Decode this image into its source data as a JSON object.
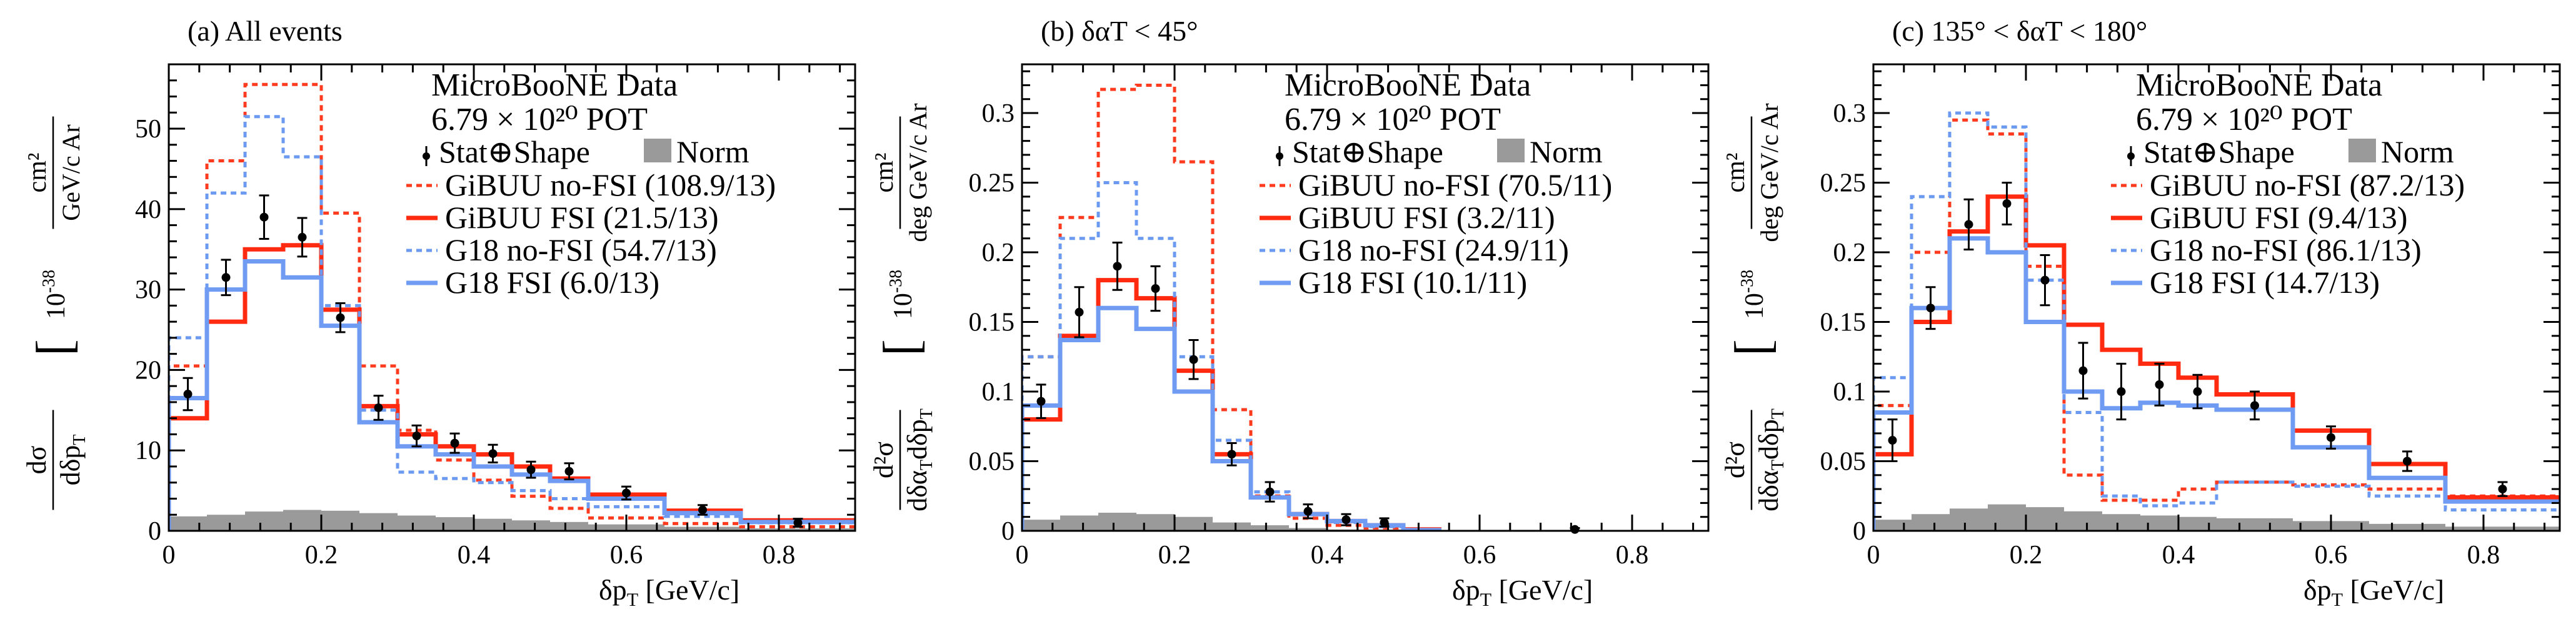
{
  "colors": {
    "gibuu_nofsi": "#ff3b1f",
    "gibuu_fsi": "#ff2a10",
    "g18_nofsi": "#6b9af0",
    "g18_fsi": "#6f9bf2",
    "norm_band": "#9a9a9a",
    "data": "#000000"
  },
  "chart_data": [
    {
      "type": "histogram",
      "panel_label": "(a) All events",
      "legend_header": [
        "MicroBooNE Data",
        "6.79 × 10²⁰ POT"
      ],
      "xlabel": "δpT [GeV/c]",
      "ylabel": "dσ/dδpT [10⁻³⁸ cm²/(GeV/c Ar)]",
      "ylabel_parts": {
        "num": "dσ",
        "den": "dδp",
        "den_sub": "T",
        "scale": "10",
        "scale_exp": "-38",
        "unit_num": "cm²",
        "unit_den": "GeV/c Ar"
      },
      "xlim": [
        0,
        0.9
      ],
      "ylim": [
        0,
        58
      ],
      "xticks": [
        0,
        0.2,
        0.4,
        0.6,
        0.8
      ],
      "xtick_labels": [
        "0",
        "0.2",
        "0.4",
        "0.6",
        "0.8"
      ],
      "yticks": [
        0,
        10,
        20,
        30,
        40,
        50
      ],
      "ytick_labels": [
        "0",
        "10",
        "20",
        "30",
        "40",
        "50"
      ],
      "bin_edges": [
        0,
        0.05,
        0.1,
        0.15,
        0.2,
        0.25,
        0.3,
        0.35,
        0.4,
        0.45,
        0.5,
        0.55,
        0.65,
        0.75,
        0.9
      ],
      "data": {
        "x": [
          0.025,
          0.075,
          0.125,
          0.175,
          0.225,
          0.275,
          0.325,
          0.375,
          0.425,
          0.475,
          0.525,
          0.6,
          0.7,
          0.825
        ],
        "y": [
          17,
          31.5,
          39,
          36.5,
          26.5,
          15.3,
          11.8,
          10.9,
          9.6,
          7.6,
          7.4,
          4.7,
          2.6,
          1.0
        ],
        "err": [
          2,
          2.2,
          2.7,
          2.4,
          1.8,
          1.5,
          1.3,
          1.2,
          1.1,
          1.0,
          1.0,
          0.8,
          0.6,
          0.5
        ]
      },
      "norm_band": [
        1.8,
        2.0,
        2.4,
        2.6,
        2.5,
        2.2,
        1.9,
        1.7,
        1.5,
        1.3,
        1.1,
        0.8,
        0.5,
        0.3
      ],
      "series": [
        {
          "name": "GiBUU no-FSI",
          "chi2": "(108.9/13)",
          "style": "dotted",
          "color_key": "gibuu_nofsi",
          "values": [
            20.5,
            46,
            55.5,
            55.5,
            39.5,
            20.5,
            12.5,
            8.8,
            6.3,
            4.3,
            2.8,
            1.6,
            0.9,
            0.5
          ]
        },
        {
          "name": "GiBUU FSI",
          "chi2": "(21.5/13)",
          "style": "solid",
          "color_key": "gibuu_fsi",
          "values": [
            14,
            26,
            35,
            35.5,
            27.5,
            15.5,
            12,
            10.5,
            9.5,
            8,
            6.5,
            4.5,
            2.5,
            1.3
          ]
        },
        {
          "name": "G18 no-FSI",
          "chi2": "(54.7/13)",
          "style": "dotted",
          "color_key": "g18_nofsi",
          "values": [
            24,
            42,
            51.5,
            46.5,
            28,
            15,
            7.3,
            6.5,
            6,
            5,
            4,
            3,
            1.8,
            1.0
          ]
        },
        {
          "name": "G18 FSI",
          "chi2": "(6.0/13)",
          "style": "solid",
          "color_key": "g18_fsi",
          "values": [
            16.5,
            30,
            33.5,
            31.5,
            25.5,
            13.5,
            10.5,
            9.5,
            8,
            7,
            6.2,
            4,
            2.2,
            1.1
          ]
        }
      ],
      "legend_stat": "Stat⊕Shape",
      "legend_norm": "Norm"
    },
    {
      "type": "histogram",
      "panel_label": "(b) δαT < 45°",
      "legend_header": [
        "MicroBooNE Data",
        "6.79 × 10²⁰ POT"
      ],
      "xlabel": "δpT [GeV/c]",
      "ylabel": "d²σ/dδαT dδpT [10⁻³⁸ cm²/(deg GeV/c Ar)]",
      "ylabel_parts": {
        "num": "d²σ",
        "den": "dδα",
        "den_sub": "T",
        "den2": "dδp",
        "den2_sub": "T",
        "scale": "10",
        "scale_exp": "-38",
        "unit_num": "cm²",
        "unit_den": "deg GeV/c Ar"
      },
      "xlim": [
        0,
        0.9
      ],
      "ylim": [
        0,
        0.335
      ],
      "xticks": [
        0,
        0.2,
        0.4,
        0.6,
        0.8
      ],
      "xtick_labels": [
        "0",
        "0.2",
        "0.4",
        "0.6",
        "0.8"
      ],
      "yticks": [
        0,
        0.05,
        0.1,
        0.15,
        0.2,
        0.25,
        0.3
      ],
      "ytick_labels": [
        "0",
        "0.05",
        "0.1",
        "0.15",
        "0.2",
        "0.25",
        "0.3"
      ],
      "bin_edges": [
        0,
        0.05,
        0.1,
        0.15,
        0.2,
        0.25,
        0.3,
        0.35,
        0.4,
        0.45,
        0.5,
        0.55,
        0.9
      ],
      "data": {
        "x": [
          0.025,
          0.075,
          0.125,
          0.175,
          0.225,
          0.275,
          0.325,
          0.375,
          0.425,
          0.475,
          0.725
        ],
        "y": [
          0.093,
          0.157,
          0.19,
          0.174,
          0.123,
          0.055,
          0.028,
          0.014,
          0.008,
          0.006,
          0.001
        ],
        "err": [
          0.012,
          0.018,
          0.017,
          0.016,
          0.014,
          0.008,
          0.007,
          0.005,
          0.004,
          0.003,
          0.001
        ]
      },
      "norm_band": [
        0.008,
        0.011,
        0.013,
        0.012,
        0.01,
        0.006,
        0.004,
        0.002,
        0.001,
        0.001,
        0.0005
      ],
      "series": [
        {
          "name": "GiBUU no-FSI",
          "chi2": "(70.5/11)",
          "style": "dotted",
          "color_key": "gibuu_nofsi",
          "values": [
            0.125,
            0.225,
            0.317,
            0.32,
            0.265,
            0.087,
            0.025,
            0.009,
            0.004,
            0.002,
            0.001
          ]
        },
        {
          "name": "GiBUU FSI",
          "chi2": "(3.2/11)",
          "style": "solid",
          "color_key": "gibuu_fsi",
          "values": [
            0.08,
            0.14,
            0.18,
            0.167,
            0.115,
            0.055,
            0.024,
            0.012,
            0.007,
            0.004,
            0.001
          ]
        },
        {
          "name": "G18 no-FSI",
          "chi2": "(24.9/11)",
          "style": "dotted",
          "color_key": "g18_nofsi",
          "values": [
            0.125,
            0.21,
            0.25,
            0.21,
            0.125,
            0.065,
            0.028,
            0.012,
            0.006,
            0.003,
            0.0005
          ]
        },
        {
          "name": "G18 FSI",
          "chi2": "(10.1/11)",
          "style": "solid",
          "color_key": "g18_fsi",
          "values": [
            0.09,
            0.137,
            0.16,
            0.145,
            0.1,
            0.05,
            0.024,
            0.012,
            0.007,
            0.004,
            0.0005
          ]
        }
      ],
      "legend_stat": "Stat⊕Shape",
      "legend_norm": "Norm"
    },
    {
      "type": "histogram",
      "panel_label": "(c) 135° < δαT < 180°",
      "legend_header": [
        "MicroBooNE Data",
        "6.79 × 10²⁰ POT"
      ],
      "xlabel": "δpT [GeV/c]",
      "ylabel": "d²σ/dδαT dδpT [10⁻³⁸ cm²/(deg GeV/c Ar)]",
      "ylabel_parts": {
        "num": "d²σ",
        "den": "dδα",
        "den_sub": "T",
        "den2": "dδp",
        "den2_sub": "T",
        "scale": "10",
        "scale_exp": "-38",
        "unit_num": "cm²",
        "unit_den": "deg GeV/c Ar"
      },
      "xlim": [
        0,
        0.9
      ],
      "ylim": [
        0,
        0.335
      ],
      "xticks": [
        0,
        0.2,
        0.4,
        0.6,
        0.8
      ],
      "xtick_labels": [
        "0",
        "0.2",
        "0.4",
        "0.6",
        "0.8"
      ],
      "yticks": [
        0,
        0.05,
        0.1,
        0.15,
        0.2,
        0.25,
        0.3
      ],
      "ytick_labels": [
        "0",
        "0.05",
        "0.1",
        "0.15",
        "0.2",
        "0.25",
        "0.3"
      ],
      "bin_edges": [
        0,
        0.05,
        0.1,
        0.15,
        0.2,
        0.25,
        0.3,
        0.35,
        0.4,
        0.45,
        0.55,
        0.65,
        0.75,
        0.9
      ],
      "data": {
        "x": [
          0.025,
          0.075,
          0.125,
          0.175,
          0.225,
          0.275,
          0.325,
          0.375,
          0.425,
          0.5,
          0.6,
          0.7,
          0.825
        ],
        "y": [
          0.065,
          0.16,
          0.22,
          0.235,
          0.18,
          0.115,
          0.1,
          0.105,
          0.1,
          0.09,
          0.067,
          0.05,
          0.03
        ],
        "err": [
          0.015,
          0.015,
          0.018,
          0.015,
          0.018,
          0.02,
          0.02,
          0.015,
          0.012,
          0.01,
          0.008,
          0.007,
          0.005
        ]
      },
      "norm_band": [
        0.008,
        0.012,
        0.016,
        0.019,
        0.017,
        0.014,
        0.012,
        0.011,
        0.01,
        0.009,
        0.007,
        0.005,
        0.003
      ],
      "series": [
        {
          "name": "GiBUU no-FSI",
          "chi2": "(87.2/13)",
          "style": "dotted",
          "color_key": "gibuu_nofsi",
          "values": [
            0.09,
            0.2,
            0.295,
            0.285,
            0.19,
            0.04,
            0.022,
            0.022,
            0.03,
            0.035,
            0.033,
            0.03,
            0.025
          ]
        },
        {
          "name": "GiBUU FSI",
          "chi2": "(9.4/13)",
          "style": "solid",
          "color_key": "gibuu_fsi",
          "values": [
            0.055,
            0.15,
            0.215,
            0.24,
            0.205,
            0.148,
            0.13,
            0.12,
            0.11,
            0.098,
            0.072,
            0.048,
            0.024
          ]
        },
        {
          "name": "G18 no-FSI",
          "chi2": "(86.1/13)",
          "style": "dotted",
          "color_key": "g18_nofsi",
          "values": [
            0.11,
            0.24,
            0.3,
            0.29,
            0.18,
            0.085,
            0.025,
            0.018,
            0.02,
            0.035,
            0.032,
            0.025,
            0.015
          ]
        },
        {
          "name": "G18 FSI",
          "chi2": "(14.7/13)",
          "style": "solid",
          "color_key": "g18_fsi",
          "values": [
            0.085,
            0.16,
            0.21,
            0.2,
            0.15,
            0.1,
            0.088,
            0.092,
            0.09,
            0.087,
            0.06,
            0.038,
            0.021
          ]
        }
      ],
      "legend_stat": "Stat⊕Shape",
      "legend_norm": "Norm"
    }
  ]
}
